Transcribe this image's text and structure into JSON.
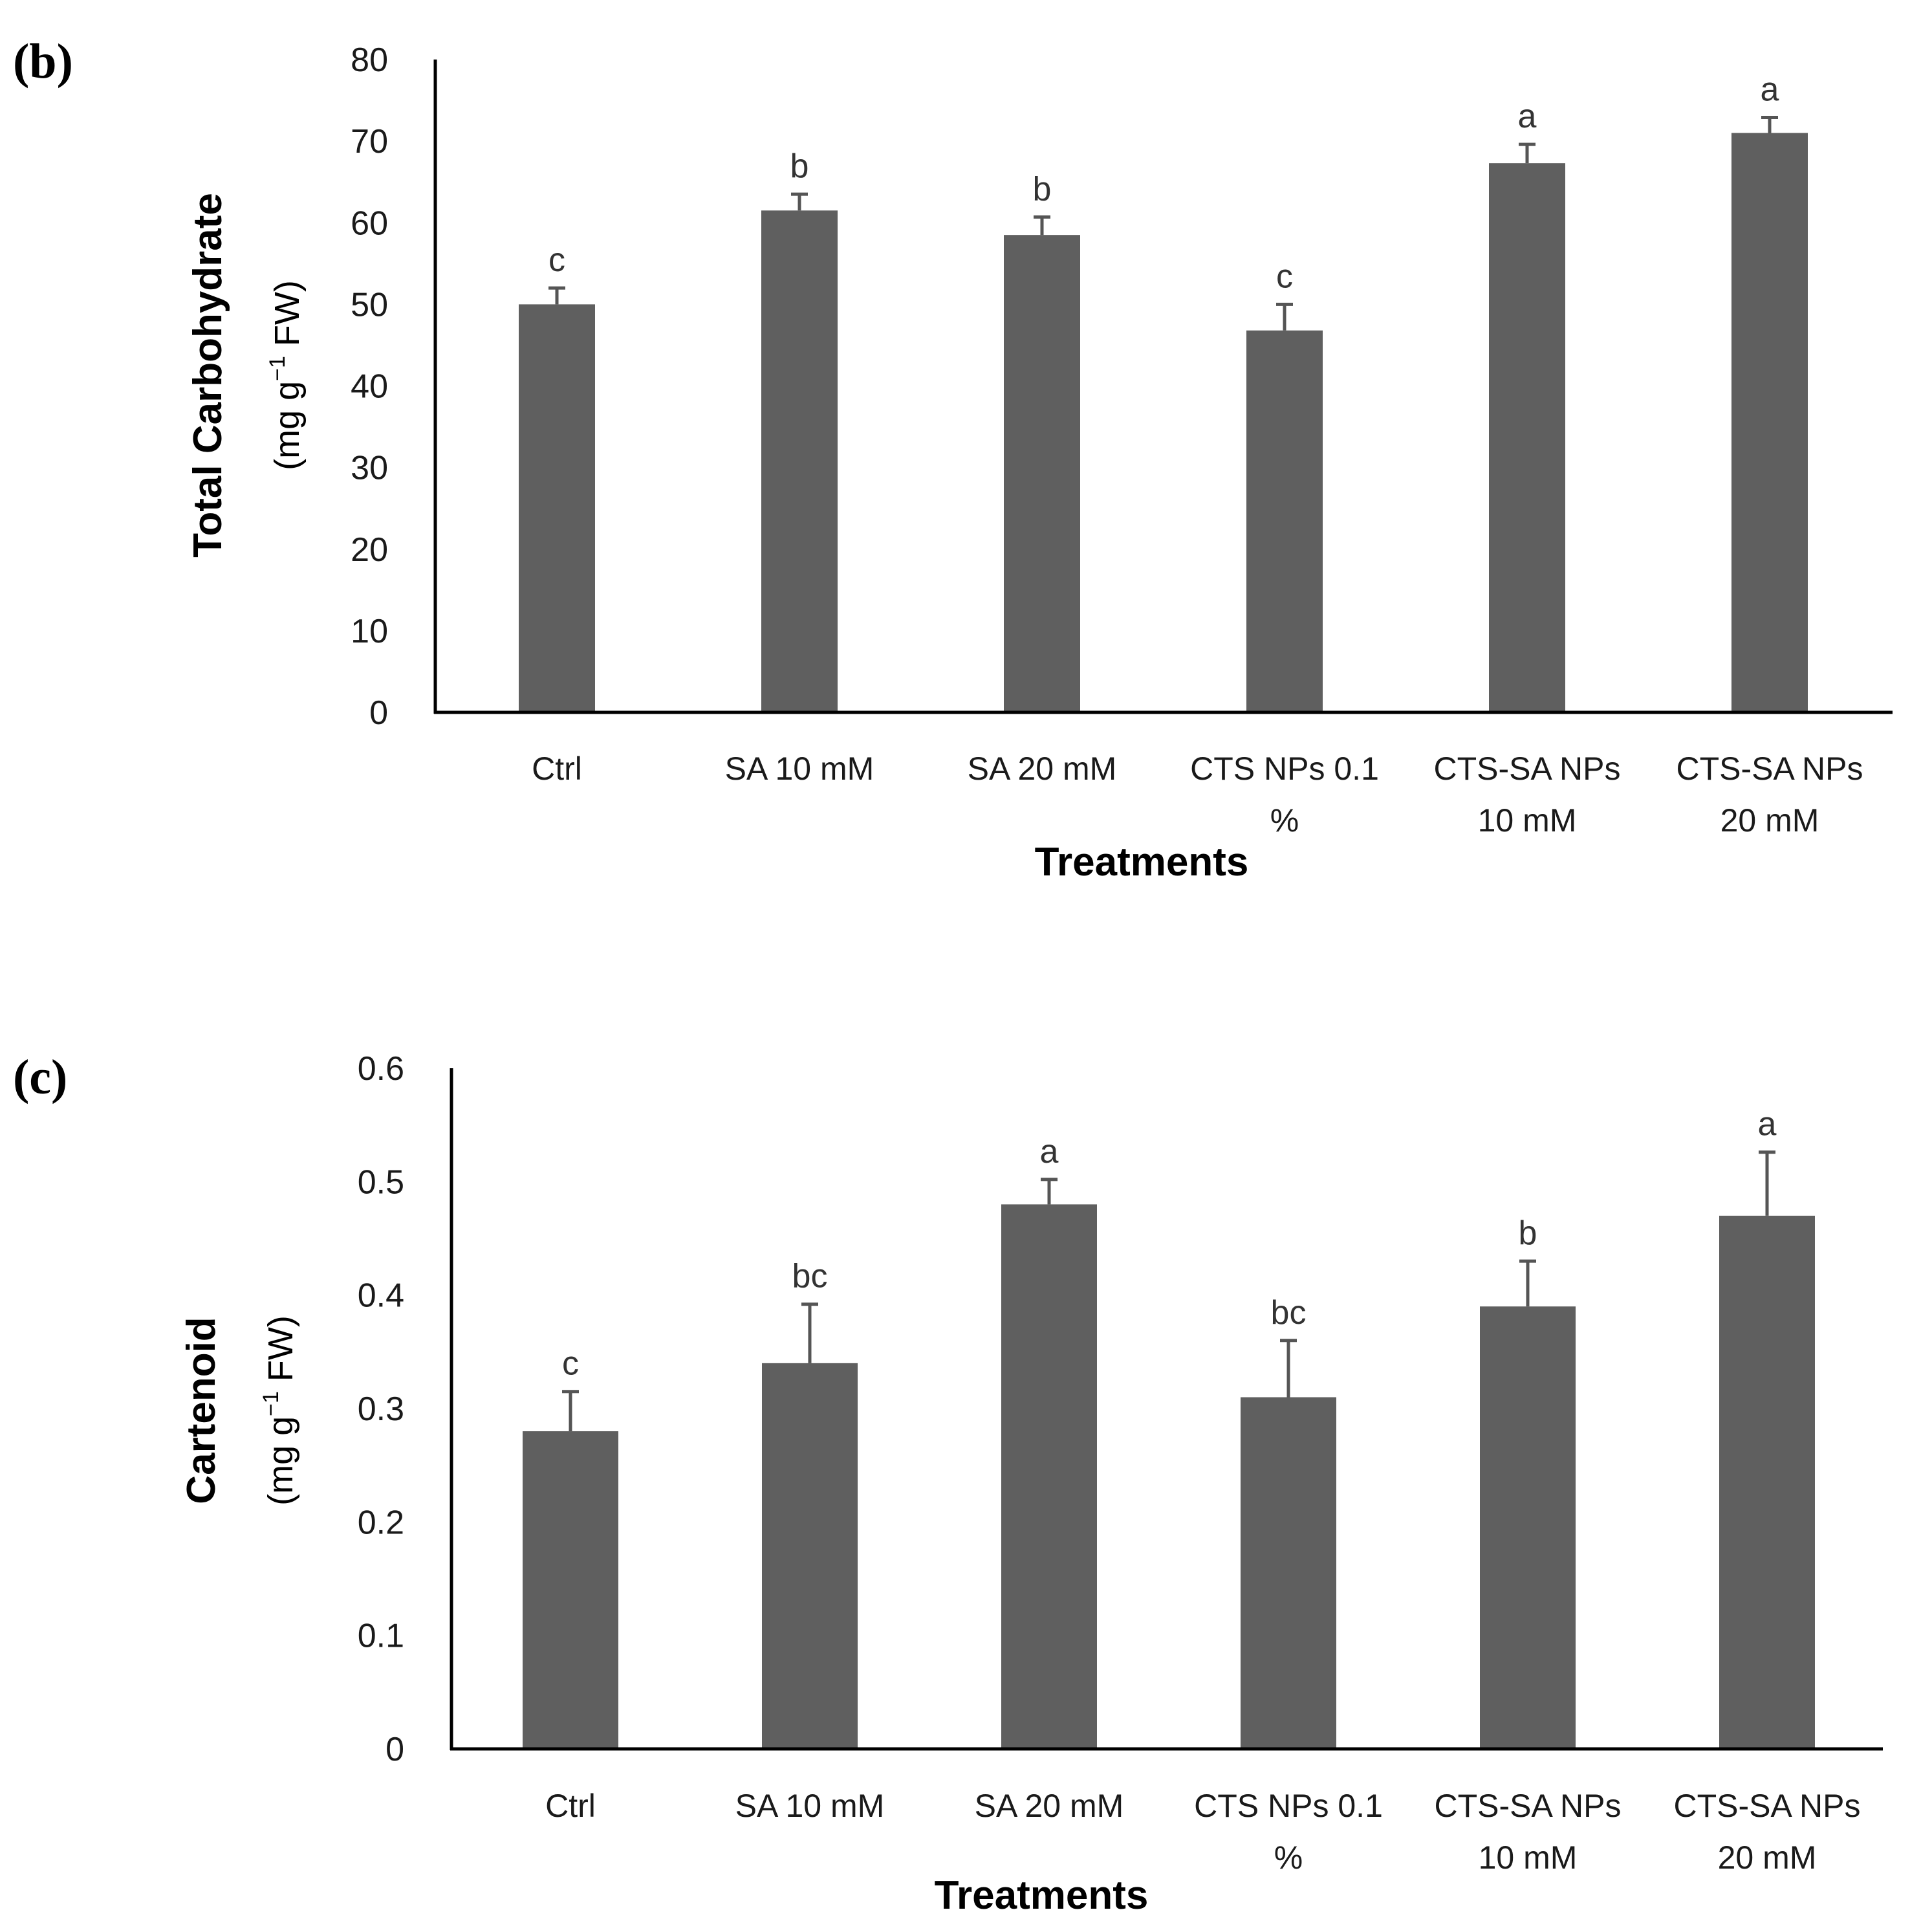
{
  "chart_data": [
    {
      "type": "bar",
      "panel_label": "(b)",
      "categories": [
        {
          "line1": "Ctrl",
          "line2": ""
        },
        {
          "line1": "SA 10 mM",
          "line2": ""
        },
        {
          "line1": "SA 20 mM",
          "line2": ""
        },
        {
          "line1": "CTS  NPs 0.1",
          "line2": "%"
        },
        {
          "line1": "CTS-SA NPs",
          "line2": "10 mM"
        },
        {
          "line1": "CTS-SA NPs",
          "line2": "20 mM"
        }
      ],
      "values": [
        50,
        61.5,
        58.5,
        46.8,
        67.3,
        71
      ],
      "errors": [
        2.0,
        2.0,
        2.2,
        3.2,
        2.3,
        1.9
      ],
      "letters": [
        "c",
        "b",
        "b",
        "c",
        "a",
        "a"
      ],
      "ylim": [
        0,
        80
      ],
      "yticks": [
        "0",
        "10",
        "20",
        "30",
        "40",
        "50",
        "60",
        "70",
        "80"
      ],
      "xlabel": "Treatments",
      "ylabel": "Total Carbohydrate",
      "ylabel_unit_pre": "(mg g",
      "ylabel_unit_sup": "−1",
      "ylabel_unit_post": " FW)",
      "bar_color": "#5f5f5f"
    },
    {
      "type": "bar",
      "panel_label": "(c)",
      "categories": [
        {
          "line1": "Ctrl",
          "line2": ""
        },
        {
          "line1": "SA 10 mM",
          "line2": ""
        },
        {
          "line1": "SA 20 mM",
          "line2": ""
        },
        {
          "line1": "CTS  NPs 0.1",
          "line2": "%"
        },
        {
          "line1": "CTS-SA NPs",
          "line2": "10 mM"
        },
        {
          "line1": "CTS-SA NPs",
          "line2": "20 mM"
        }
      ],
      "values": [
        0.28,
        0.34,
        0.48,
        0.31,
        0.39,
        0.47
      ],
      "errors": [
        0.035,
        0.052,
        0.022,
        0.05,
        0.04,
        0.056
      ],
      "letters": [
        "c",
        "bc",
        "a",
        "bc",
        "b",
        "a"
      ],
      "ylim": [
        0,
        0.6
      ],
      "yticks": [
        "0",
        "0.1",
        "0.2",
        "0.3",
        "0.4",
        "0.5",
        "0.6"
      ],
      "xlabel": "Treatments",
      "ylabel": "Cartenoid",
      "ylabel_unit_pre": "(mg g",
      "ylabel_unit_sup": "−1",
      "ylabel_unit_post": " FW)",
      "bar_color": "#5f5f5f"
    }
  ]
}
